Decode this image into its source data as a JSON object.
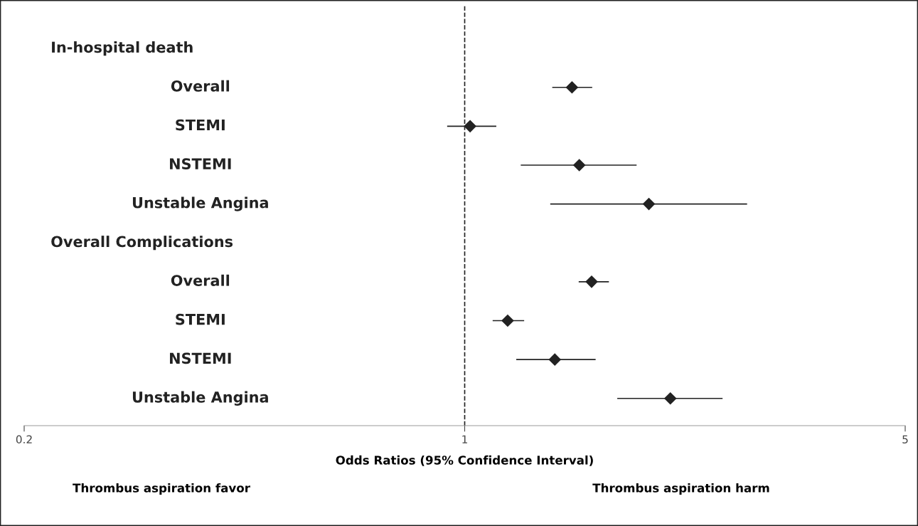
{
  "chart_data": {
    "type": "scatter",
    "orientation": "horizontal",
    "categories": [
      "In-hospital death",
      "Overall",
      "STEMI",
      "NSTEMI",
      "Unstable Angina",
      "Overall Complications",
      "Overall",
      "STEMI",
      "NSTEMI",
      "Unstable Angina"
    ],
    "series": [
      {
        "color": "#222222",
        "values": [
          null,
          1.48,
          1.02,
          1.52,
          1.96,
          null,
          1.59,
          1.17,
          1.39,
          2.12
        ],
        "errors": [
          null,
          [
            1.38,
            1.59
          ],
          [
            0.94,
            1.12
          ],
          [
            1.23,
            1.87
          ],
          [
            1.37,
            2.8
          ],
          null,
          [
            1.52,
            1.69
          ],
          [
            1.11,
            1.24
          ],
          [
            1.21,
            1.61
          ],
          [
            1.75,
            2.56
          ]
        ]
      }
    ],
    "marker": "diamond",
    "log": "x",
    "xlim": [
      0.2,
      5
    ],
    "xticks": [
      0.2,
      1,
      5
    ],
    "tick_labels": "x",
    "grid": false,
    "legend": false,
    "xlabel": "Odds Ratios (95% Confidence Interval)",
    "ref_lines": [
      {
        "axis": "x",
        "value": 1,
        "line_style": "dashed",
        "color": "#222222"
      }
    ],
    "annotations": [
      "Thrombus aspiration favor",
      "Thrombus aspiration harm"
    ]
  }
}
